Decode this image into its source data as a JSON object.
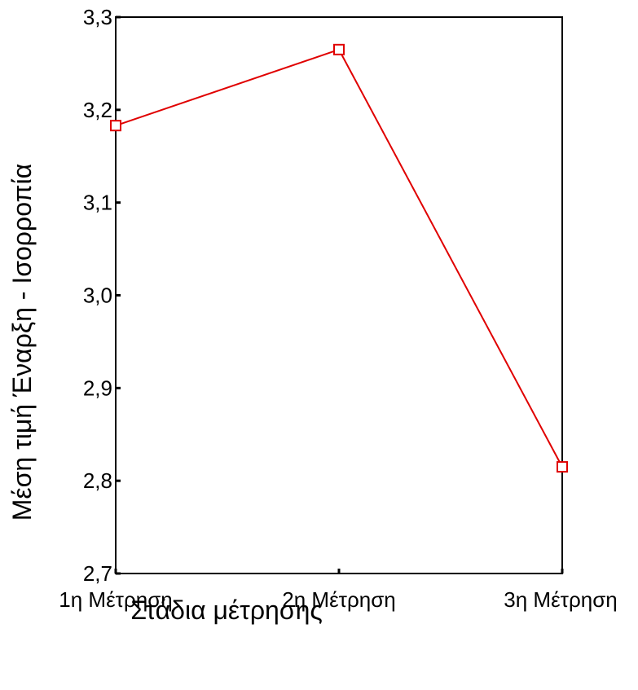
{
  "chart_data": {
    "type": "line",
    "title": "",
    "xlabel": "Στάδια μέτρησης",
    "ylabel": "Μέση τιμή Έναρξη - Ισορροπία",
    "categories": [
      "1η Μέτρηση",
      "2η Μέτρηση",
      "3η Μέτρηση"
    ],
    "series": [
      {
        "values": [
          3.183,
          3.265,
          2.815
        ],
        "color": "#e00000",
        "marker": "square"
      }
    ],
    "ylim": [
      2.7,
      3.3
    ],
    "yticks": [
      2.7,
      2.8,
      2.9,
      3.0,
      3.1,
      3.2,
      3.3
    ],
    "ytick_labels": [
      "2,7",
      "2,8",
      "2,9",
      "3,0",
      "3,1",
      "3,2",
      "3,3"
    ],
    "grid": false,
    "legend": "none"
  }
}
